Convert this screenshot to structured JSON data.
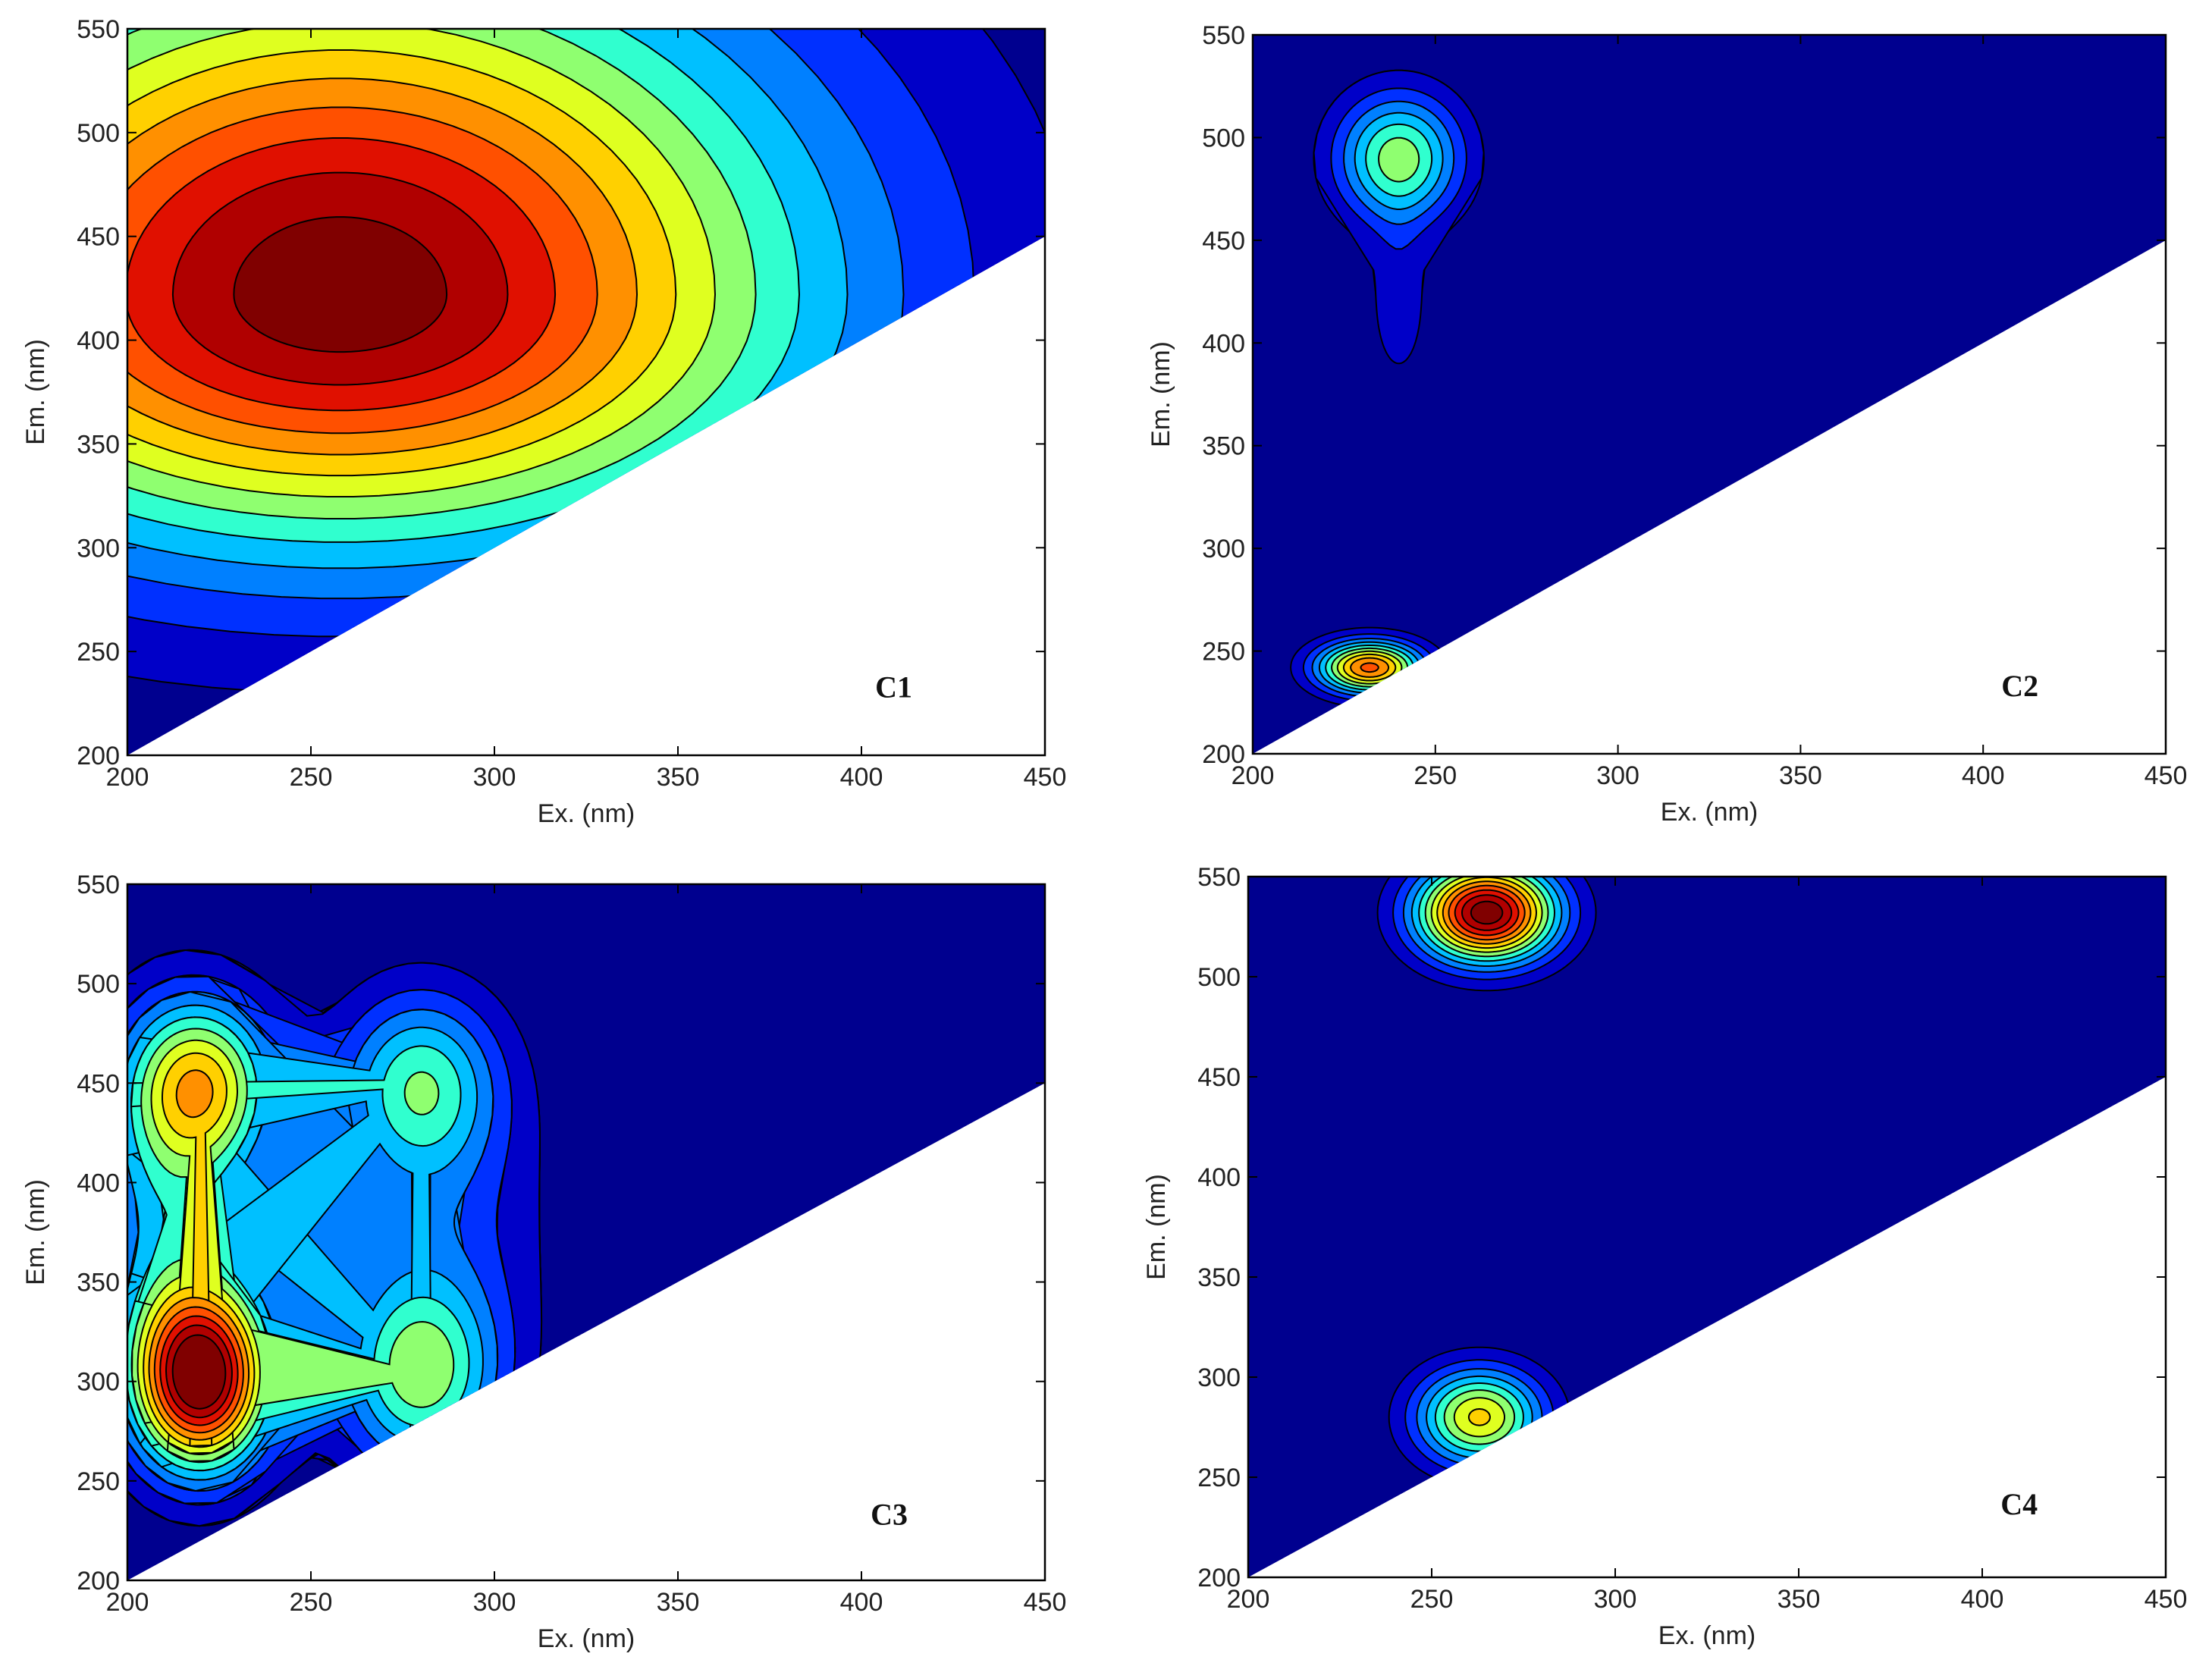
{
  "figure": {
    "colors": {
      "background": "#00008f",
      "blank_region": "#ffffff",
      "contour_line": "#000000",
      "frame": "#000000"
    },
    "colormap": [
      "#00008f",
      "#0000c8",
      "#0030ff",
      "#0080ff",
      "#00c0ff",
      "#30ffcf",
      "#8fff70",
      "#dfff20",
      "#ffd000",
      "#ff9000",
      "#ff5000",
      "#e01000",
      "#b00000",
      "#800000"
    ]
  },
  "chart_data": [
    {
      "type": "contour",
      "panel": "C1",
      "xlabel": "Ex. (nm)",
      "ylabel": "Em. (nm)",
      "xlim": [
        200,
        450
      ],
      "ylim": [
        200,
        550
      ],
      "xticks": [
        "200",
        "250",
        "300",
        "350",
        "400",
        "450"
      ],
      "yticks": [
        "200",
        "250",
        "300",
        "350",
        "400",
        "450",
        "500",
        "550"
      ],
      "blank_region": "Em < Ex",
      "peaks": [
        {
          "ex": 258,
          "em": 422,
          "intensity": 1.0,
          "spread_ex": 88,
          "spread_em": 84,
          "skew_up": 1.35
        }
      ]
    },
    {
      "type": "contour",
      "panel": "C2",
      "xlabel": "Ex. (nm)",
      "ylabel": "Em. (nm)",
      "xlim": [
        200,
        450
      ],
      "ylim": [
        200,
        550
      ],
      "xticks": [
        "200",
        "250",
        "300",
        "350",
        "400",
        "450"
      ],
      "yticks": [
        "200",
        "250",
        "300",
        "350",
        "400",
        "450",
        "500",
        "550"
      ],
      "blank_region": "Em < Ex",
      "peaks": [
        {
          "ex": 240,
          "em": 490,
          "intensity": 0.48,
          "spread_ex": 12,
          "spread_em": 22
        },
        {
          "ex": 240,
          "em": 420,
          "intensity": 0.12,
          "spread_ex": 6,
          "spread_em": 30
        },
        {
          "ex": 232,
          "em": 242,
          "intensity": 0.75,
          "spread_ex": 10,
          "spread_em": 9
        }
      ]
    },
    {
      "type": "contour",
      "panel": "C3",
      "xlabel": "Ex. (nm)",
      "ylabel": "Em. (nm)",
      "xlim": [
        200,
        450
      ],
      "ylim": [
        200,
        550
      ],
      "xticks": [
        "200",
        "250",
        "300",
        "350",
        "400",
        "450"
      ],
      "yticks": [
        "200",
        "250",
        "300",
        "350",
        "400",
        "450",
        "500",
        "550"
      ],
      "blank_region": "Em < Ex",
      "peaks": [
        {
          "ex": 220,
          "em": 302,
          "intensity": 1.0,
          "spread_ex": 13,
          "spread_em": 32
        },
        {
          "ex": 220,
          "em": 450,
          "intensity": 0.52,
          "spread_ex": 14,
          "spread_em": 30
        },
        {
          "ex": 212,
          "em": 390,
          "intensity": 0.3,
          "spread_ex": 16,
          "spread_em": 60
        },
        {
          "ex": 280,
          "em": 303,
          "intensity": 0.44,
          "spread_ex": 15,
          "spread_em": 34
        },
        {
          "ex": 280,
          "em": 450,
          "intensity": 0.38,
          "spread_ex": 15,
          "spread_em": 32
        },
        {
          "ex": 282,
          "em": 378,
          "intensity": 0.17,
          "spread_ex": 22,
          "spread_em": 55
        }
      ]
    },
    {
      "type": "contour",
      "panel": "C4",
      "xlabel": "Ex. (nm)",
      "ylabel": "Em. (nm)",
      "xlim": [
        200,
        450
      ],
      "ylim": [
        200,
        550
      ],
      "xticks": [
        "200",
        "250",
        "300",
        "350",
        "400",
        "450"
      ],
      "yticks": [
        "200",
        "250",
        "300",
        "350",
        "400",
        "450",
        "500",
        "550"
      ],
      "blank_region": "Em < Ex",
      "peaks": [
        {
          "ex": 265,
          "em": 532,
          "intensity": 1.0,
          "spread_ex": 13,
          "spread_em": 17
        },
        {
          "ex": 263,
          "em": 280,
          "intensity": 0.6,
          "spread_ex": 12,
          "spread_em": 17
        }
      ]
    }
  ]
}
